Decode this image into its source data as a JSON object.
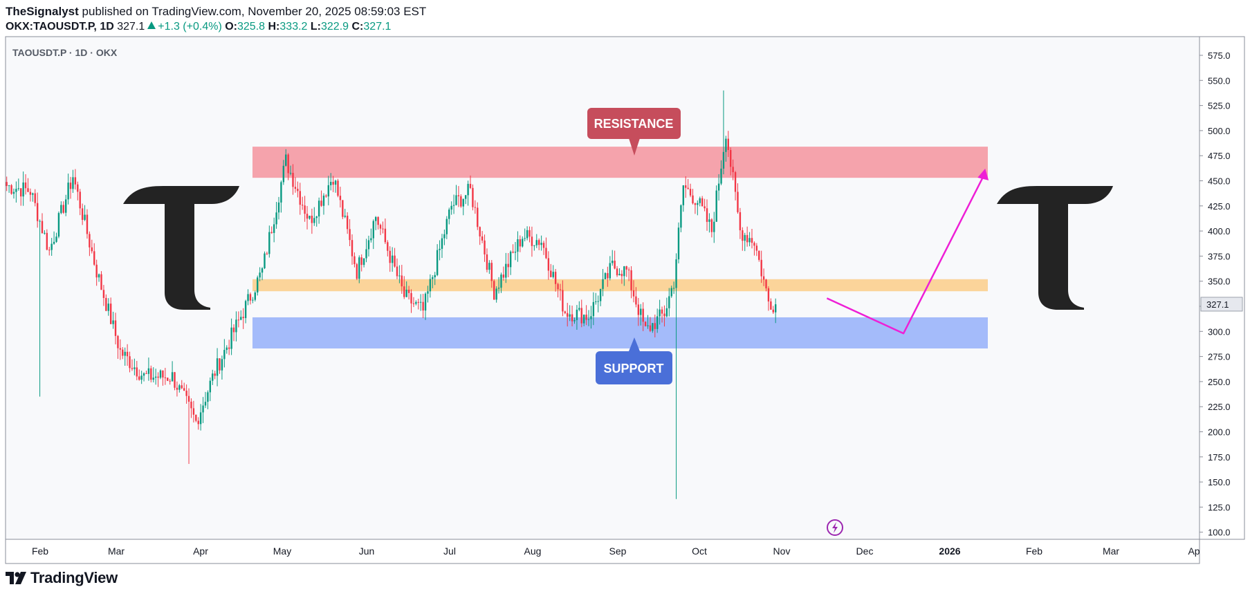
{
  "header": {
    "author": "TheSignalyst",
    "published_text": "published on TradingView.com, November 20, 2025 08:59:03 EST",
    "symbol": "OKX:TAOUSDT.P, 1D",
    "last_price": "327.1",
    "change": "+1.3 (+0.4%)",
    "open_label": "O:",
    "open_value": "325.8",
    "high_label": "H:",
    "high_value": "333.2",
    "low_label": "L:",
    "low_value": "322.9",
    "close_label": "C:",
    "close_value": "327.1"
  },
  "chart_data": {
    "type": "candlestick",
    "title": "TAOUSDT.P · 1D · OKX",
    "y_range": [
      95,
      585
    ],
    "y_ticks": [
      "575.0",
      "550.0",
      "525.0",
      "500.0",
      "475.0",
      "450.0",
      "425.0",
      "400.0",
      "375.0",
      "350.0",
      "325.0",
      "300.0",
      "275.0",
      "250.0",
      "225.0",
      "200.0",
      "175.0",
      "150.0",
      "125.0",
      "100.0"
    ],
    "x_months": [
      "Feb",
      "Mar",
      "Apr",
      "May",
      "Jun",
      "Jul",
      "Aug",
      "Sep",
      "Oct",
      "Nov",
      "Dec",
      "2026",
      "Feb",
      "Mar",
      "Ap"
    ],
    "current_price_label": "327.1",
    "zones": [
      {
        "name": "resistance",
        "low": 453,
        "high": 484,
        "color": "#f5a3ac"
      },
      {
        "name": "mid",
        "low": 340,
        "high": 352,
        "color": "#fbd49a"
      },
      {
        "name": "support",
        "low": 283,
        "high": 314,
        "color": "#a4bbfa"
      }
    ],
    "labels": {
      "resistance": "RESISTANCE",
      "support": "SUPPORT"
    },
    "projection": [
      [
        2025.88,
        333
      ],
      [
        2025.955,
        298
      ],
      [
        2026.035,
        458
      ]
    ],
    "anchors": [
      {
        "d": 0,
        "p": 445
      },
      {
        "d": 10,
        "p": 440
      },
      {
        "d": 18,
        "p": 380
      },
      {
        "d": 28,
        "p": 455
      },
      {
        "d": 38,
        "p": 360
      },
      {
        "d": 48,
        "p": 280
      },
      {
        "d": 58,
        "p": 255
      },
      {
        "d": 70,
        "p": 255
      },
      {
        "d": 80,
        "p": 210
      },
      {
        "d": 88,
        "p": 260
      },
      {
        "d": 98,
        "p": 310
      },
      {
        "d": 108,
        "p": 360
      },
      {
        "d": 118,
        "p": 470
      },
      {
        "d": 128,
        "p": 410
      },
      {
        "d": 138,
        "p": 455
      },
      {
        "d": 148,
        "p": 360
      },
      {
        "d": 156,
        "p": 415
      },
      {
        "d": 168,
        "p": 335
      },
      {
        "d": 176,
        "p": 320
      },
      {
        "d": 188,
        "p": 425
      },
      {
        "d": 196,
        "p": 440
      },
      {
        "d": 206,
        "p": 340
      },
      {
        "d": 218,
        "p": 395
      },
      {
        "d": 226,
        "p": 390
      },
      {
        "d": 236,
        "p": 320
      },
      {
        "d": 246,
        "p": 315
      },
      {
        "d": 256,
        "p": 365
      },
      {
        "d": 262,
        "p": 360
      },
      {
        "d": 270,
        "p": 300
      },
      {
        "d": 278,
        "p": 318
      },
      {
        "d": 282,
        "p": 350
      },
      {
        "d": 286,
        "p": 445
      },
      {
        "d": 292,
        "p": 430
      },
      {
        "d": 298,
        "p": 400
      },
      {
        "d": 304,
        "p": 500
      },
      {
        "d": 310,
        "p": 400
      },
      {
        "d": 316,
        "p": 390
      },
      {
        "d": 322,
        "p": 330
      },
      {
        "d": 325,
        "p": 327
      }
    ]
  },
  "watermark_glyph": "T",
  "footer": {
    "brand": "TradingView"
  },
  "colors": {
    "up": "#089981",
    "down": "#f23645",
    "resistance_label": "#c64d5c",
    "support_label": "#4a6fd8",
    "arrow": "#ee1fd6"
  }
}
